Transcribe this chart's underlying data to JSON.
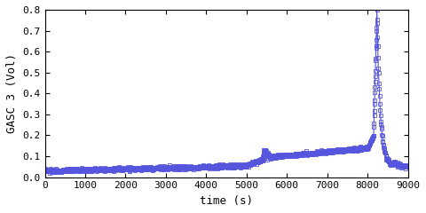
{
  "title": "",
  "xlabel": "time (s)",
  "ylabel": "GASC 3 (Vol)",
  "xlim": [
    0,
    9000
  ],
  "ylim": [
    0,
    0.8
  ],
  "xticks": [
    0,
    1000,
    2000,
    3000,
    4000,
    5000,
    6000,
    7000,
    8000,
    9000
  ],
  "yticks": [
    0.0,
    0.1,
    0.2,
    0.3,
    0.4,
    0.5,
    0.6,
    0.7,
    0.8
  ],
  "line_color": "#5555dd",
  "marker": "s",
  "markersize": 2.5,
  "background_color": "#ffffff",
  "figsize": [
    4.8,
    2.4
  ],
  "dpi": 100,
  "font_family": "monospace"
}
